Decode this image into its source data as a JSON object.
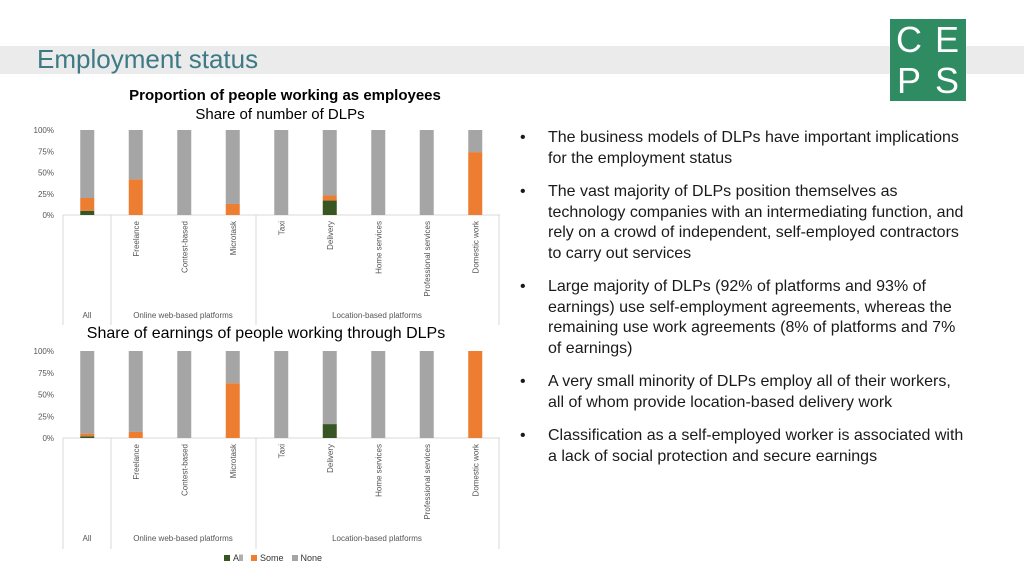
{
  "page": {
    "title": "Employment status"
  },
  "logo": {
    "letters": [
      "C",
      "E",
      "P",
      "S"
    ],
    "color": "#2e8b62"
  },
  "colors": {
    "all": "#375623",
    "some": "#ed7d31",
    "none": "#a5a5a5",
    "title": "#3d7a86"
  },
  "bullets": [
    "The business models of DLPs have important implications for the employment status",
    "The vast majority of DLPs position themselves as technology companies with an intermediating function, and rely on a crowd of independent, self-employed contractors to carry out services",
    "Large majority of DLPs (92% of platforms and 93% of earnings) use self-employment agreements, whereas the remaining use work agreements (8% of platforms and 7% of earnings)",
    "A very small minority of DLPs employ all of their workers, all of whom provide location-based delivery work",
    "Classification as a self-employed worker is associated with a lack of social protection and secure earnings"
  ],
  "legend": {
    "all": "All",
    "some": "Some",
    "none": "None"
  },
  "chart_data": [
    {
      "type": "bar",
      "stacked": true,
      "title": "Proportion of people working as employees",
      "subtitle": "Share of number of DLPs",
      "categories": [
        "All",
        "Freelance",
        "Contest-based",
        "Microtask",
        "Taxi",
        "Delivery",
        "Home services",
        "Professional services",
        "Domestic work"
      ],
      "groups": [
        {
          "label": "All",
          "members": [
            "All"
          ]
        },
        {
          "label": "Online web-based platforms",
          "members": [
            "Freelance",
            "Contest-based",
            "Microtask"
          ]
        },
        {
          "label": "Location-based platforms",
          "members": [
            "Taxi",
            "Delivery",
            "Home services",
            "Professional services",
            "Domestic work"
          ]
        }
      ],
      "yticks": [
        "0%",
        "25%",
        "50%",
        "75%",
        "100%"
      ],
      "ylim": [
        0,
        100
      ],
      "series": [
        {
          "name": "All",
          "values": [
            5,
            0,
            0,
            0,
            0,
            17,
            0,
            0,
            0
          ]
        },
        {
          "name": "Some",
          "values": [
            15,
            42,
            0,
            13,
            0,
            6,
            0,
            0,
            74
          ]
        },
        {
          "name": "None",
          "values": [
            80,
            58,
            100,
            87,
            100,
            77,
            100,
            100,
            26
          ]
        }
      ]
    },
    {
      "type": "bar",
      "stacked": true,
      "title": "Share of earnings of people working through DLPs",
      "categories": [
        "All",
        "Freelance",
        "Contest-based",
        "Microtask",
        "Taxi",
        "Delivery",
        "Home services",
        "Professional services",
        "Domestic work"
      ],
      "groups": [
        {
          "label": "All",
          "members": [
            "All"
          ]
        },
        {
          "label": "Online web-based platforms",
          "members": [
            "Freelance",
            "Contest-based",
            "Microtask"
          ]
        },
        {
          "label": "Location-based platforms",
          "members": [
            "Taxi",
            "Delivery",
            "Home services",
            "Professional services",
            "Domestic work"
          ]
        }
      ],
      "yticks": [
        "0%",
        "25%",
        "50%",
        "75%",
        "100%"
      ],
      "ylim": [
        0,
        100
      ],
      "series": [
        {
          "name": "All",
          "values": [
            2,
            0,
            0,
            0,
            0,
            16,
            0,
            0,
            0
          ]
        },
        {
          "name": "Some",
          "values": [
            3,
            7,
            0,
            63,
            0,
            0,
            0,
            0,
            100
          ]
        },
        {
          "name": "None",
          "values": [
            95,
            93,
            100,
            37,
            100,
            84,
            100,
            100,
            0
          ]
        }
      ]
    }
  ]
}
